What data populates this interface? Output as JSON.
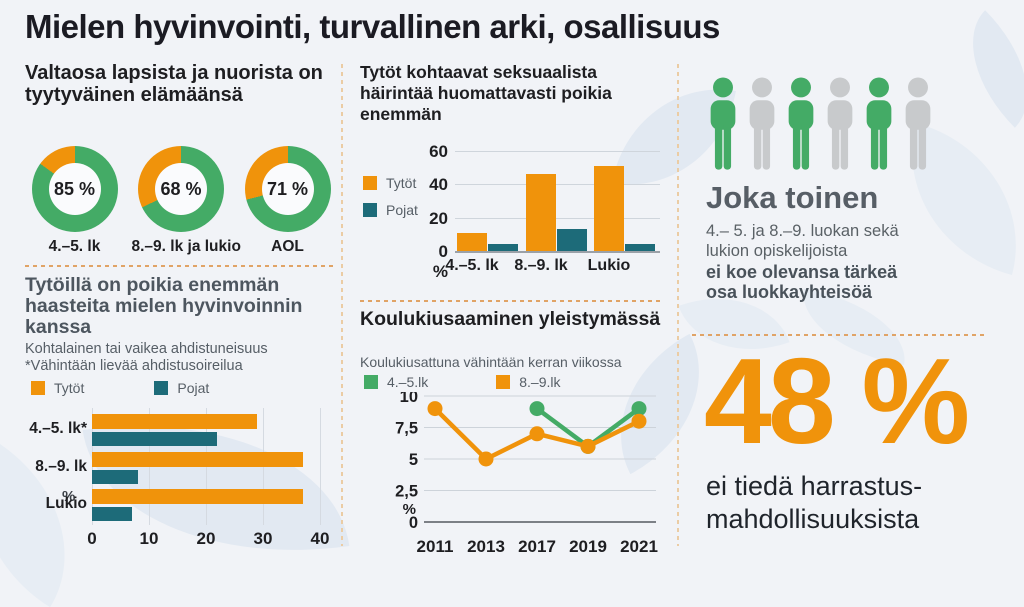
{
  "title": "Mielen hyvinvointi, turvallinen arki, osallisuus",
  "colors": {
    "orange": "#F0930B",
    "teal": "#1D6B79",
    "green": "#44AB66",
    "person_gray": "#C8CACC",
    "slate_heading": "#4D565F",
    "dark_text": "#1E1E21",
    "background": "#F1F3F7"
  },
  "left": {
    "heading": "Valtaosa lapsista ja nuorista on tyytyväinen elämäänsä",
    "section2": {
      "heading": "Tytöillä on poikia enemmän haasteita mielen hyvinvoinnin kanssa",
      "subtitle1": "Kohtalainen tai vaikea ahdistuneisuus",
      "subtitle2": "*Vähintään lievää ahdistusoireilua"
    }
  },
  "right": {
    "people": {
      "count": 6,
      "colors": [
        "green",
        "gray",
        "green",
        "gray",
        "green",
        "gray"
      ]
    },
    "heading": "Joka toinen",
    "body_line1": "4.– 5. ja 8.–9. luokan sekä",
    "body_line2": "lukion opiskelijoista",
    "bold_line1": "ei koe olevansa tärkeä",
    "bold_line2": "osa luokkayhteisöä",
    "stat_value": "48 %",
    "stat_line1": "ei tiedä harrastus-",
    "stat_line2": "mahdollisuuksista"
  },
  "chart_data": [
    {
      "id": "life-satisfaction-donuts",
      "type": "pie",
      "title": "Valtaosa lapsista ja nuorista on tyytyväinen elämäänsä",
      "unit": "%",
      "donuts": [
        {
          "label": "4.–5. lk",
          "value": 85
        },
        {
          "label": "8.–9. lk ja lukio",
          "value": 68
        },
        {
          "label": "AOL",
          "value": 71
        }
      ],
      "colors": {
        "filled": "#44AB66",
        "remainder": "#F0930B"
      }
    },
    {
      "id": "anxiety-hbar",
      "type": "bar",
      "orientation": "horizontal",
      "title": "Tytöillä on poikia enemmän haasteita mielen hyvinvoinnin kanssa",
      "subtitle": [
        "Kohtalainen tai vaikea ahdistuneisuus",
        "*Vähintään lievää ahdistusoireilua"
      ],
      "categories": [
        "4.–5. lk*",
        "8.–9. lk",
        "Lukio"
      ],
      "series": [
        {
          "name": "Tytöt",
          "color": "#F0930B",
          "values": [
            29,
            37,
            37
          ]
        },
        {
          "name": "Pojat",
          "color": "#1D6B79",
          "values": [
            22,
            8,
            7
          ]
        }
      ],
      "xlabel": "%",
      "xlim": [
        0,
        40
      ],
      "xticks": [
        0,
        10,
        20,
        30,
        40
      ]
    },
    {
      "id": "sexual-harassment-vbar",
      "type": "bar",
      "orientation": "vertical",
      "title": "Tytöt kohtaavat seksuaalista häirintää huomattavasti poikia enemmän",
      "categories": [
        "4.–5. lk",
        "8.–9. lk",
        "Lukio"
      ],
      "series": [
        {
          "name": "Tytöt",
          "color": "#F0930B",
          "values": [
            11,
            46,
            51
          ]
        },
        {
          "name": "Pojat",
          "color": "#1D6B79",
          "values": [
            4,
            13,
            4
          ]
        }
      ],
      "ylabel": "%",
      "ylim": [
        0,
        60
      ],
      "yticks": [
        0,
        20,
        40,
        60
      ]
    },
    {
      "id": "bullying-line",
      "type": "line",
      "title": "Koulukiusaaminen yleistymässä",
      "subtitle": "Koulukiusattuna vähintään kerran viikossa",
      "x": [
        "2011",
        "2013",
        "2017",
        "2019",
        "2021"
      ],
      "series": [
        {
          "name": "4.–5.lk",
          "color": "#44AB66",
          "values": [
            null,
            null,
            9,
            6,
            9
          ]
        },
        {
          "name": "8.–9.lk",
          "color": "#F0930B",
          "values": [
            9,
            5,
            7,
            6,
            8
          ]
        }
      ],
      "ylabel": "%",
      "ylim": [
        0,
        10
      ],
      "yticks": [
        0,
        2.5,
        5,
        7.5,
        10
      ],
      "ytick_labels": [
        "0",
        "2,5",
        "5",
        "7,5",
        "10"
      ]
    }
  ]
}
